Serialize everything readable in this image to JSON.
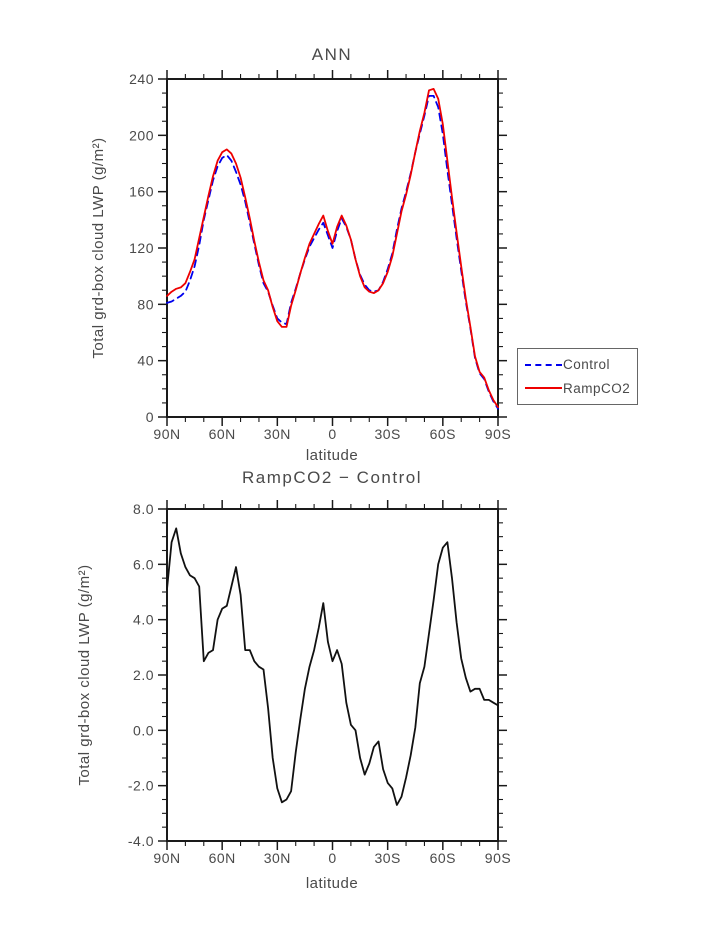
{
  "chart_data": [
    {
      "type": "line",
      "title": "ANN",
      "xlabel": "latitude",
      "ylabel": "Total grd-box cloud LWP (g/m²)",
      "xlim": [
        90,
        -90
      ],
      "ylim": [
        0,
        240
      ],
      "x_tick_values": [
        90,
        60,
        30,
        0,
        -30,
        -60,
        -90
      ],
      "x_tick_labels": [
        "90N",
        "60N",
        "30N",
        "0",
        "30S",
        "60S",
        "90S"
      ],
      "x_minor_step": 10,
      "y_tick_values": [
        0,
        40,
        80,
        120,
        160,
        200,
        240
      ],
      "y_tick_labels": [
        "0",
        "40",
        "80",
        "120",
        "160",
        "200",
        "240"
      ],
      "y_minor_step": 10,
      "grid": false,
      "legend_position": "right-outside",
      "x": [
        90,
        87.5,
        85,
        82.5,
        80,
        77.5,
        75,
        72.5,
        70,
        67.5,
        65,
        62.5,
        60,
        57.5,
        55,
        52.5,
        50,
        47.5,
        45,
        42.5,
        40,
        37.5,
        35,
        32.5,
        30,
        27.5,
        25,
        22.5,
        20,
        17.5,
        15,
        12.5,
        10,
        7.5,
        5,
        2.5,
        0,
        -2.5,
        -5,
        -7.5,
        -10,
        -12.5,
        -15,
        -17.5,
        -20,
        -22.5,
        -25,
        -27.5,
        -30,
        -32.5,
        -35,
        -37.5,
        -40,
        -42.5,
        -45,
        -47.5,
        -50,
        -52.5,
        -55,
        -57.5,
        -60,
        -62.5,
        -65,
        -67.5,
        -70,
        -72.5,
        -75,
        -77.5,
        -80,
        -82.5,
        -85,
        -87.5,
        -90
      ],
      "series": [
        {
          "name": "Control",
          "color": "#0000ee",
          "style": "dashed",
          "values": [
            81,
            82,
            84,
            86,
            89,
            97,
            107,
            122,
            140,
            154,
            168,
            178,
            184,
            186,
            182,
            174,
            165,
            153,
            138,
            123,
            108,
            95,
            89,
            79,
            70,
            67,
            66,
            81,
            91,
            102,
            112,
            121,
            127,
            133,
            138,
            129,
            120,
            132,
            141,
            135,
            126,
            112,
            101,
            94,
            90,
            89,
            90,
            96,
            105,
            116,
            133,
            148,
            160,
            173,
            188,
            201,
            214,
            228,
            228,
            220,
            201,
            175,
            151,
            127,
            104,
            82,
            63,
            42,
            31,
            27,
            18,
            11,
            6
          ]
        },
        {
          "name": "RampCO2",
          "color": "#ee0000",
          "style": "solid",
          "values": [
            86,
            89,
            91,
            92,
            95,
            103,
            112,
            127,
            142,
            157,
            171,
            182,
            188,
            190,
            187,
            180,
            170,
            156,
            141,
            125,
            110,
            97,
            90,
            78,
            68,
            64,
            64,
            79,
            90,
            102,
            113,
            123,
            130,
            137,
            143,
            132,
            123,
            135,
            143,
            136,
            126,
            112,
            100,
            92,
            89,
            88,
            90,
            95,
            103,
            114,
            130,
            146,
            158,
            172,
            188,
            203,
            216,
            232,
            233,
            226,
            208,
            182,
            156,
            131,
            107,
            84,
            64,
            43,
            32,
            28,
            19,
            12,
            7
          ]
        }
      ]
    },
    {
      "type": "line",
      "title": "RampCO2 − Control",
      "xlabel": "latitude",
      "ylabel": "Total grd-box cloud LWP (g/m²)",
      "xlim": [
        90,
        -90
      ],
      "ylim": [
        -4,
        8
      ],
      "x_tick_values": [
        90,
        60,
        30,
        0,
        -30,
        -60,
        -90
      ],
      "x_tick_labels": [
        "90N",
        "60N",
        "30N",
        "0",
        "30S",
        "60S",
        "90S"
      ],
      "x_minor_step": 10,
      "y_tick_values": [
        -4,
        -2,
        0,
        2,
        4,
        6,
        8
      ],
      "y_tick_labels": [
        "-4.0",
        "-2.0",
        "0.0",
        "2.0",
        "4.0",
        "6.0",
        "8.0"
      ],
      "y_minor_step": 0.5,
      "grid": false,
      "x": [
        90,
        87.5,
        85,
        82.5,
        80,
        77.5,
        75,
        72.5,
        70,
        67.5,
        65,
        62.5,
        60,
        57.5,
        55,
        52.5,
        50,
        47.5,
        45,
        42.5,
        40,
        37.5,
        35,
        32.5,
        30,
        27.5,
        25,
        22.5,
        20,
        17.5,
        15,
        12.5,
        10,
        7.5,
        5,
        2.5,
        0,
        -2.5,
        -5,
        -7.5,
        -10,
        -12.5,
        -15,
        -17.5,
        -20,
        -22.5,
        -25,
        -27.5,
        -30,
        -32.5,
        -35,
        -37.5,
        -40,
        -42.5,
        -45,
        -47.5,
        -50,
        -52.5,
        -55,
        -57.5,
        -60,
        -62.5,
        -65,
        -67.5,
        -70,
        -72.5,
        -75,
        -77.5,
        -80,
        -82.5,
        -85,
        -87.5,
        -90
      ],
      "series": [
        {
          "name": "RampCO2 − Control",
          "color": "#111111",
          "style": "solid",
          "values": [
            5.1,
            6.8,
            7.3,
            6.4,
            5.9,
            5.6,
            5.5,
            5.2,
            2.5,
            2.8,
            2.9,
            4.0,
            4.4,
            4.5,
            5.2,
            5.9,
            4.9,
            2.9,
            2.9,
            2.5,
            2.3,
            2.2,
            0.8,
            -1.0,
            -2.1,
            -2.6,
            -2.5,
            -2.2,
            -0.8,
            0.4,
            1.5,
            2.3,
            2.9,
            3.7,
            4.6,
            3.2,
            2.5,
            2.9,
            2.4,
            1.0,
            0.2,
            0.0,
            -1.0,
            -1.6,
            -1.2,
            -0.6,
            -0.4,
            -1.4,
            -1.9,
            -2.1,
            -2.7,
            -2.4,
            -1.7,
            -0.9,
            0.1,
            1.7,
            2.3,
            3.5,
            4.7,
            6.0,
            6.6,
            6.8,
            5.5,
            3.9,
            2.6,
            1.9,
            1.4,
            1.5,
            1.5,
            1.1,
            1.1,
            1.0,
            0.9
          ]
        }
      ]
    }
  ]
}
